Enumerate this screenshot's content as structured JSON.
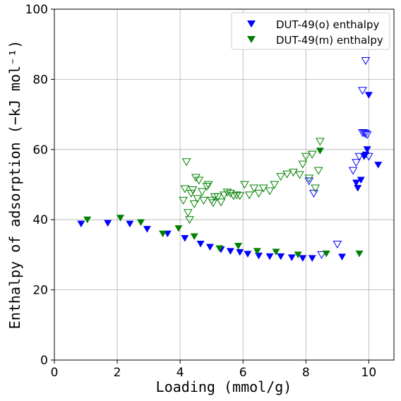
{
  "chart_data": {
    "type": "scatter",
    "title": "",
    "xlabel": "Loading (mmol/g)",
    "ylabel": "Enthalpy of adsorption (−kJ mol⁻¹)",
    "xlim": [
      0,
      10.8
    ],
    "ylim": [
      0,
      100
    ],
    "xticks": [
      "0",
      "2",
      "4",
      "6",
      "8",
      "10"
    ],
    "yticks": [
      "0",
      "20",
      "40",
      "60",
      "80",
      "100"
    ],
    "grid": true,
    "legend_position": "top-right",
    "series": [
      {
        "name": "DUT-49(o) enthalpy",
        "color": "#0000ff",
        "marker": "triangle-down",
        "style": "filled",
        "x": [
          0.85,
          1.7,
          2.4,
          2.95,
          3.6,
          4.15,
          4.65,
          4.95,
          5.3,
          5.6,
          5.9,
          6.15,
          6.5,
          6.85,
          7.2,
          7.55,
          7.9,
          8.2,
          9.15,
          9.6,
          9.65,
          9.75,
          9.85,
          9.9,
          9.95,
          10.0,
          10.3
        ],
        "y": [
          38.8,
          39.0,
          38.8,
          37.3,
          36.0,
          34.7,
          33.1,
          32.2,
          31.5,
          31.0,
          30.7,
          30.2,
          29.7,
          29.5,
          29.5,
          29.2,
          29.0,
          29.0,
          29.4,
          50.5,
          49.0,
          51.3,
          58.0,
          58.5,
          60.0,
          75.5,
          55.6
        ]
      },
      {
        "name": "",
        "color": "#0000ff",
        "marker": "triangle-down",
        "style": "open",
        "x": [
          8.1,
          8.25,
          8.5,
          9.0,
          9.5,
          9.6,
          9.7,
          9.8,
          9.85,
          9.9,
          9.95,
          10.0,
          9.9,
          9.8
        ],
        "y": [
          51.0,
          47.5,
          30.0,
          33.0,
          54.0,
          56.3,
          58.0,
          64.8,
          64.7,
          64.5,
          64.2,
          58.0,
          85.3,
          76.8
        ]
      },
      {
        "name": "DUT-49(m) enthalpy",
        "color": "#008000",
        "marker": "triangle-down",
        "style": "filled",
        "x": [
          1.05,
          2.1,
          2.75,
          3.45,
          3.95,
          4.45,
          5.25,
          5.85,
          6.45,
          7.05,
          7.75,
          8.45,
          8.65,
          9.7
        ],
        "y": [
          40.0,
          40.5,
          39.2,
          36.0,
          37.5,
          35.2,
          31.8,
          32.5,
          31.0,
          30.8,
          30.0,
          59.6,
          30.3,
          30.3
        ]
      },
      {
        "name": "",
        "color": "#008000",
        "marker": "triangle-down",
        "style": "open",
        "x": [
          4.1,
          4.15,
          4.2,
          4.25,
          4.3,
          4.35,
          4.4,
          4.45,
          4.5,
          4.55,
          4.6,
          4.7,
          4.75,
          4.85,
          4.9,
          5.0,
          5.05,
          5.1,
          5.2,
          5.3,
          5.4,
          5.5,
          5.6,
          5.7,
          5.8,
          5.9,
          6.05,
          6.2,
          6.35,
          6.5,
          6.65,
          6.85,
          7.0,
          7.2,
          7.4,
          7.6,
          7.8,
          7.9,
          8.0,
          8.1,
          8.2,
          8.3,
          8.4,
          8.45
        ],
        "y": [
          45.5,
          48.8,
          56.5,
          42.0,
          40.0,
          47.5,
          48.5,
          44.5,
          52.0,
          46.0,
          51.2,
          48.0,
          45.5,
          49.5,
          50.0,
          45.5,
          44.8,
          46.5,
          46.5,
          45.0,
          47.0,
          47.8,
          47.5,
          46.8,
          47.0,
          46.8,
          50.0,
          47.0,
          49.0,
          47.5,
          49.0,
          48.2,
          50.0,
          52.3,
          53.0,
          53.5,
          52.8,
          55.8,
          58.0,
          51.8,
          58.6,
          49.0,
          54.0,
          62.3
        ]
      }
    ]
  }
}
